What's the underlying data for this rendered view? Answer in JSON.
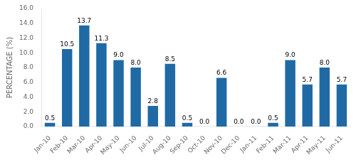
{
  "chart_data": {
    "type": "bar",
    "categories": [
      "Jan-10",
      "Feb-10",
      "Mar-10",
      "Apr-10",
      "May-10",
      "Jun-10",
      "Jul-10",
      "Aug-10",
      "Sep-10",
      "Oct-10",
      "Nov-10",
      "Dec-10",
      "Jan-11",
      "Feb-11",
      "Mar-11",
      "Apr-11",
      "May-11",
      "Jun-11"
    ],
    "values": [
      0.5,
      10.5,
      13.7,
      11.3,
      9.0,
      8.0,
      2.8,
      8.5,
      0.5,
      0.0,
      6.6,
      0.0,
      0.0,
      0.5,
      9.0,
      5.7,
      8.0,
      5.7
    ],
    "value_labels": [
      "0.5",
      "10.5",
      "13.7",
      "11.3",
      "9.0",
      "8.0",
      "2.8",
      "8.5",
      "0.5",
      "0.0",
      "6.6",
      "0.0",
      "0.0",
      "0.5",
      "9.0",
      "5.7",
      "8.0",
      "5.7"
    ],
    "data_labels": true,
    "color": "#1F6AA5",
    "ylabel": "PERCENTAGE (%)",
    "ylim": [
      0,
      16.0
    ],
    "yticks": [
      {
        "value": 0.0,
        "label": "0.0"
      },
      {
        "value": 2.0,
        "label": "2.0"
      },
      {
        "value": 4.0,
        "label": "4.0"
      },
      {
        "value": 6.0,
        "label": "6.0"
      },
      {
        "value": 8.0,
        "label": "8.0"
      },
      {
        "value": 10.0,
        "label": "10.0"
      },
      {
        "value": 12.0,
        "label": "12.0"
      },
      {
        "value": 14.0,
        "label": "14.0"
      },
      {
        "value": 16.0,
        "label": "16.0"
      }
    ],
    "grid": false,
    "legend": false
  }
}
